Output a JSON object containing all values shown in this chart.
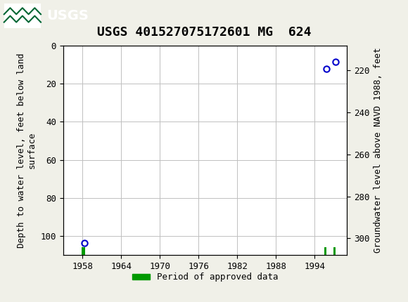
{
  "title": "USGS 401527075172601 MG  624",
  "header_bg_color": "#006633",
  "plot_bg_color": "#ffffff",
  "fig_bg_color": "#f0f0e8",
  "ylabel_left": "Depth to water level, feet below land\nsurface",
  "ylabel_right": "Groundwater level above NAVD 1988, feet",
  "xlim": [
    1955,
    1999
  ],
  "ylim_left": [
    0,
    110
  ],
  "ylim_right_top": 308,
  "ylim_right_bottom": 208,
  "xticks": [
    1958,
    1964,
    1970,
    1976,
    1982,
    1988,
    1994
  ],
  "yticks_left": [
    0,
    20,
    40,
    60,
    80,
    100
  ],
  "yticks_right": [
    300,
    280,
    260,
    240,
    220
  ],
  "grid_color": "#c0c0c0",
  "data_points": [
    {
      "year": 1958.3,
      "depth": 103.5
    },
    {
      "year": 1995.8,
      "depth": 12.5
    },
    {
      "year": 1997.3,
      "depth": 8.5
    }
  ],
  "green_bars": [
    {
      "year_start": 1957.9,
      "year_end": 1958.4
    },
    {
      "year_start": 1995.5,
      "year_end": 1995.85
    },
    {
      "year_start": 1996.9,
      "year_end": 1997.25
    }
  ],
  "green_bar_color": "#009900",
  "marker_color": "#0000cc",
  "marker_size": 6,
  "legend_label": "Period of approved data",
  "title_fontsize": 13,
  "tick_fontsize": 9,
  "axis_label_fontsize": 9
}
